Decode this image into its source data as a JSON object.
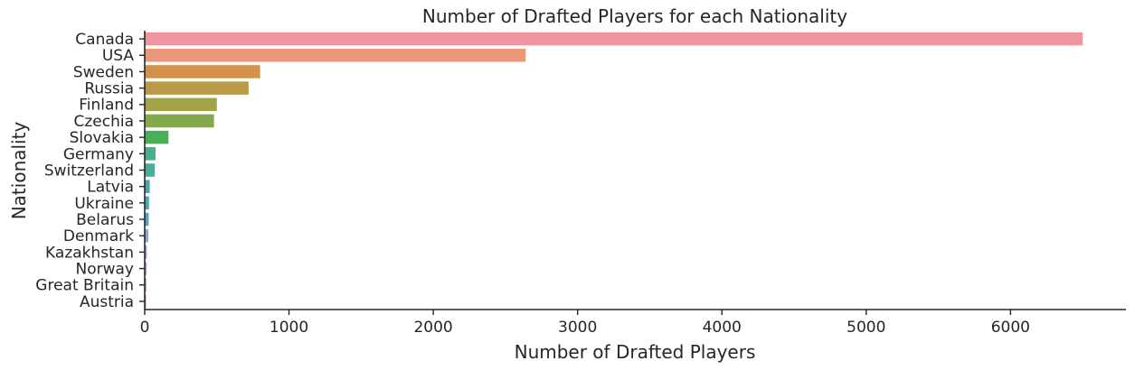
{
  "chart_data": {
    "type": "bar",
    "orientation": "horizontal",
    "title": "Number of Drafted Players for each Nationality",
    "xlabel": "Number of Drafted Players",
    "ylabel": "Nationality",
    "xlim": [
      0,
      6800
    ],
    "xticks": [
      0,
      1000,
      2000,
      3000,
      4000,
      5000,
      6000
    ],
    "grid": false,
    "categories": [
      "Canada",
      "USA",
      "Sweden",
      "Russia",
      "Finland",
      "Czechia",
      "Slovakia",
      "Germany",
      "Switzerland",
      "Latvia",
      "Ukraine",
      "Belarus",
      "Denmark",
      "Kazakhstan",
      "Norway",
      "Great Britain",
      "Austria"
    ],
    "values": [
      6500,
      2640,
      800,
      720,
      500,
      480,
      165,
      75,
      70,
      35,
      30,
      28,
      25,
      15,
      14,
      12,
      10
    ],
    "colors": [
      "#f0949e",
      "#eb977a",
      "#d4914a",
      "#b99a46",
      "#a2a448",
      "#84a94a",
      "#4aae56",
      "#48b088",
      "#47ad9c",
      "#48aaa8",
      "#49a9b7",
      "#4ca7c9",
      "#8aa8e4",
      "#a99be8",
      "#cf8fe7",
      "#e287d8",
      "#eb86bf"
    ]
  }
}
